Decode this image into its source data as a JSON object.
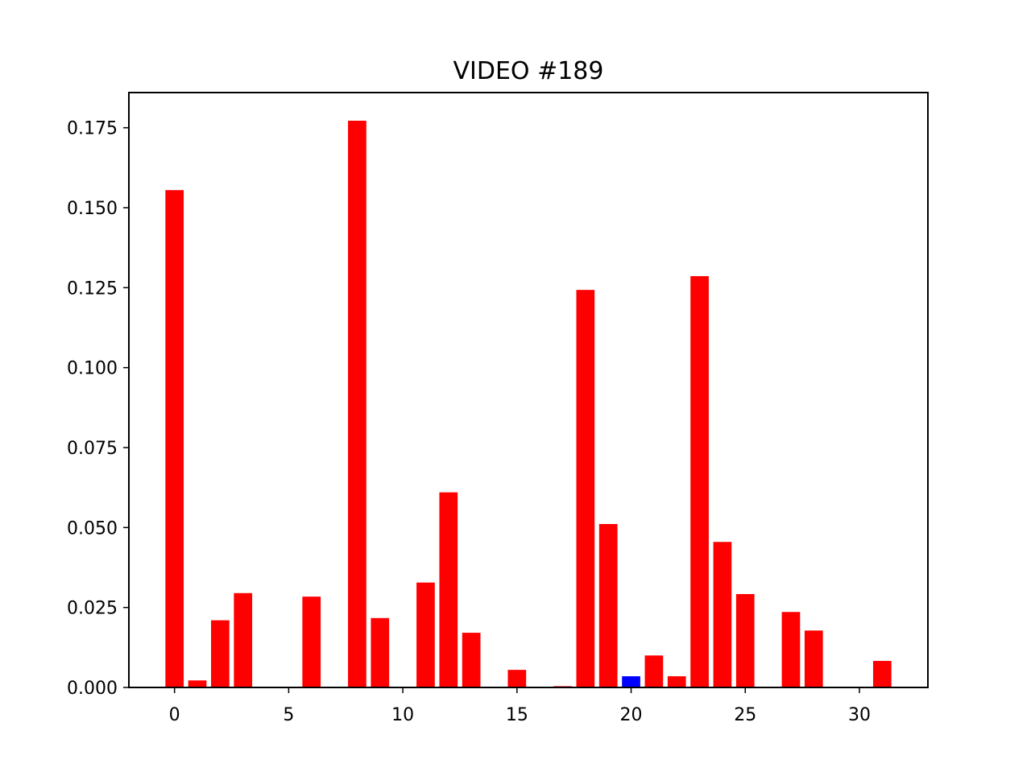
{
  "chart_data": {
    "type": "bar",
    "title": "VIDEO #189",
    "xlabel": "",
    "ylabel": "",
    "x": [
      0,
      1,
      2,
      3,
      4,
      5,
      6,
      7,
      8,
      9,
      10,
      11,
      12,
      13,
      14,
      15,
      16,
      17,
      18,
      19,
      20,
      21,
      22,
      23,
      24,
      25,
      26,
      27,
      28,
      29,
      30,
      31
    ],
    "values": [
      0.1555,
      0.0022,
      0.021,
      0.0295,
      0,
      0,
      0.0284,
      0,
      0.1772,
      0.0217,
      0,
      0.0328,
      0.061,
      0.0171,
      0,
      0.0055,
      0,
      0.0004,
      0.1243,
      0.0511,
      0.0035,
      0.01,
      0.0035,
      0.1286,
      0.0455,
      0.0292,
      0,
      0.0236,
      0.0178,
      0,
      0,
      0.0083
    ],
    "highlight_index": 20,
    "colors": {
      "default_bar": "#ff0000",
      "highlight_bar": "#0000ff"
    },
    "xlim": [
      -2,
      33
    ],
    "ylim": [
      0,
      0.186
    ],
    "xticks": [
      0,
      5,
      10,
      15,
      20,
      25,
      30
    ],
    "xtick_labels": [
      "0",
      "5",
      "10",
      "15",
      "20",
      "25",
      "30"
    ],
    "yticks": [
      0,
      0.025,
      0.05,
      0.075,
      0.1,
      0.125,
      0.15,
      0.175
    ],
    "ytick_labels": [
      "0.000",
      "0.025",
      "0.050",
      "0.075",
      "0.100",
      "0.125",
      "0.150",
      "0.175"
    ],
    "grid": false,
    "legend": "none"
  }
}
